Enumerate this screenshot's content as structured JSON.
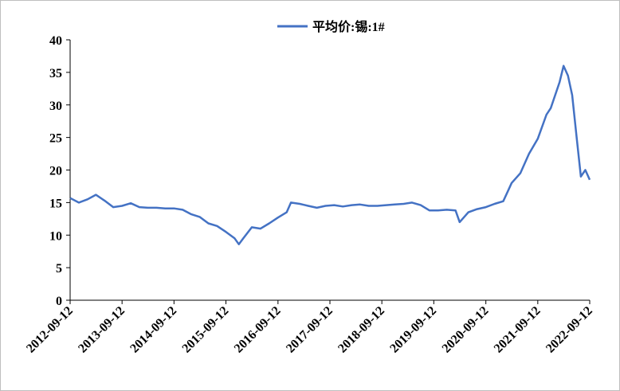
{
  "chart_data": {
    "type": "line",
    "series": [
      {
        "name": "平均价:锡:1#",
        "color": "#4472c4",
        "x": [
          "2012-09-12",
          "2012-11-12",
          "2013-01-12",
          "2013-03-12",
          "2013-05-12",
          "2013-07-12",
          "2013-09-12",
          "2013-11-12",
          "2014-01-12",
          "2014-03-12",
          "2014-05-12",
          "2014-07-12",
          "2014-09-12",
          "2014-11-12",
          "2015-01-12",
          "2015-03-12",
          "2015-05-12",
          "2015-07-12",
          "2015-09-12",
          "2015-11-12",
          "2015-12-12",
          "2016-01-12",
          "2016-03-12",
          "2016-05-12",
          "2016-07-12",
          "2016-09-12",
          "2016-11-12",
          "2016-12-12",
          "2017-02-12",
          "2017-04-12",
          "2017-06-12",
          "2017-08-12",
          "2017-10-12",
          "2017-12-12",
          "2018-02-12",
          "2018-04-12",
          "2018-06-12",
          "2018-08-12",
          "2018-10-12",
          "2018-12-12",
          "2019-02-12",
          "2019-04-12",
          "2019-06-12",
          "2019-08-12",
          "2019-10-12",
          "2019-12-12",
          "2020-02-12",
          "2020-03-12",
          "2020-05-12",
          "2020-07-12",
          "2020-09-12",
          "2020-11-12",
          "2021-01-12",
          "2021-03-12",
          "2021-05-12",
          "2021-07-12",
          "2021-09-12",
          "2021-11-12",
          "2021-12-12",
          "2022-02-12",
          "2022-03-12",
          "2022-04-12",
          "2022-05-12",
          "2022-06-12",
          "2022-07-12",
          "2022-08-12",
          "2022-09-12"
        ],
        "values": [
          15.7,
          15.0,
          15.5,
          16.2,
          15.3,
          14.3,
          14.5,
          14.9,
          14.3,
          14.2,
          14.2,
          14.1,
          14.1,
          13.9,
          13.2,
          12.8,
          11.8,
          11.4,
          10.5,
          9.5,
          8.6,
          9.5,
          11.2,
          11.0,
          11.8,
          12.7,
          13.5,
          15.0,
          14.8,
          14.5,
          14.2,
          14.5,
          14.6,
          14.4,
          14.6,
          14.7,
          14.5,
          14.5,
          14.6,
          14.7,
          14.8,
          15.0,
          14.6,
          13.8,
          13.8,
          13.9,
          13.8,
          12.0,
          13.5,
          14.0,
          14.3,
          14.8,
          15.2,
          18.0,
          19.5,
          22.5,
          24.8,
          28.5,
          29.5,
          33.5,
          36.0,
          34.5,
          31.5,
          25.0,
          19.0,
          20.0,
          18.5
        ]
      }
    ],
    "xlim": [
      "2012-09-12",
      "2022-09-12"
    ],
    "xticks": [
      "2012-09-12",
      "2013-09-12",
      "2014-09-12",
      "2015-09-12",
      "2016-09-12",
      "2017-09-12",
      "2018-09-12",
      "2019-09-12",
      "2020-09-12",
      "2021-09-12",
      "2022-09-12"
    ],
    "ylim": [
      0,
      40
    ],
    "yticks": [
      0,
      5,
      10,
      15,
      20,
      25,
      30,
      35,
      40
    ],
    "grid": false,
    "legend": "top"
  }
}
